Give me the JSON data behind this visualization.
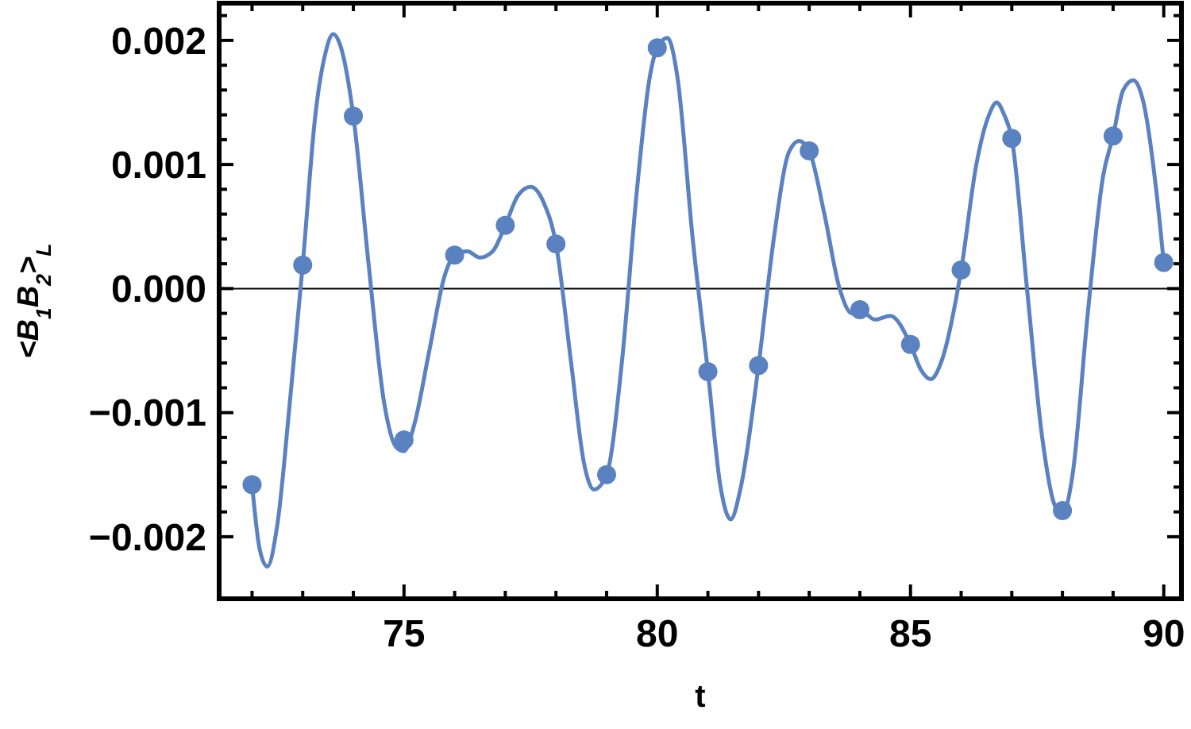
{
  "chart_data": {
    "type": "line",
    "xlabel": "t",
    "ylabel": "<B$_{1}$B$_{2}$>$_{L}$",
    "xlim": [
      71.35,
      90.35
    ],
    "ylim": [
      -0.0025,
      0.0023
    ],
    "xticks": [
      {
        "value": 72,
        "label": null
      },
      {
        "value": 73,
        "label": null
      },
      {
        "value": 74,
        "label": null
      },
      75,
      {
        "value": 76,
        "label": null
      },
      {
        "value": 77,
        "label": null
      },
      {
        "value": 78,
        "label": null
      },
      {
        "value": 79,
        "label": null
      },
      80,
      {
        "value": 81,
        "label": null
      },
      {
        "value": 82,
        "label": null
      },
      {
        "value": 83,
        "label": null
      },
      {
        "value": 84,
        "label": null
      },
      85,
      {
        "value": 86,
        "label": null
      },
      {
        "value": 87,
        "label": null
      },
      {
        "value": 88,
        "label": null
      },
      {
        "value": 89,
        "label": null
      },
      90
    ],
    "yticks": [
      {
        "value": -0.002,
        "label": "−0.002"
      },
      {
        "value": -0.0018,
        "label": null
      },
      {
        "value": -0.0016,
        "label": null
      },
      {
        "value": -0.0014,
        "label": null
      },
      {
        "value": -0.0012,
        "label": null
      },
      {
        "value": -0.001,
        "label": "−0.001"
      },
      {
        "value": -0.0008,
        "label": null
      },
      {
        "value": -0.0006,
        "label": null
      },
      {
        "value": -0.0004,
        "label": null
      },
      {
        "value": -0.0002,
        "label": null
      },
      {
        "value": 0,
        "label": "0.000"
      },
      {
        "value": 0.0002,
        "label": null
      },
      {
        "value": 0.0004,
        "label": null
      },
      {
        "value": 0.0006,
        "label": null
      },
      {
        "value": 0.0008,
        "label": null
      },
      {
        "value": 0.001,
        "label": "0.001"
      },
      {
        "value": 0.0012,
        "label": null
      },
      {
        "value": 0.0014,
        "label": null
      },
      {
        "value": 0.0016,
        "label": null
      },
      {
        "value": 0.0018,
        "label": null
      },
      {
        "value": 0.002,
        "label": "0.002"
      },
      {
        "value": 0.0022,
        "label": null
      }
    ],
    "grid": false,
    "ref_lines": [
      {
        "axis": "y",
        "value": 0,
        "color": "#000000"
      }
    ],
    "series": [
      {
        "color": "#5b82c0",
        "marker": "none",
        "line_style": "solid",
        "x": [
          72,
          72.15,
          72.3,
          72.5,
          72.75,
          73,
          73.25,
          73.45,
          73.6,
          73.75,
          74,
          74.3,
          74.6,
          74.85,
          75,
          75.2,
          75.5,
          75.8,
          76,
          76.25,
          76.5,
          76.75,
          77,
          77.25,
          77.5,
          77.75,
          78,
          78.3,
          78.55,
          78.75,
          79,
          79.3,
          79.6,
          79.85,
          80,
          80.2,
          80.4,
          80.7,
          81,
          81.25,
          81.45,
          81.65,
          82,
          82.3,
          82.6,
          82.8,
          83,
          83.3,
          83.6,
          83.85,
          84,
          84.3,
          84.6,
          85,
          85.2,
          85.4,
          85.6,
          86,
          86.3,
          86.55,
          86.7,
          86.85,
          87,
          87.3,
          87.6,
          87.85,
          88,
          88.2,
          88.5,
          88.8,
          89,
          89.2,
          89.4,
          89.6,
          89.85,
          90
        ],
        "values": [
          -0.00158,
          -0.0021,
          -0.00224,
          -0.0019,
          -0.0009,
          0.00019,
          0.0014,
          0.0019,
          0.00205,
          0.00195,
          0.00139,
          0.0002,
          -0.0009,
          -0.00128,
          -0.00131,
          -0.0011,
          -0.0005,
          0.0001,
          0.00027,
          0.0003,
          0.00025,
          0.0003,
          0.00051,
          0.00075,
          0.00082,
          0.0007,
          0.00036,
          -0.0006,
          -0.0014,
          -0.00162,
          -0.0015,
          -0.0006,
          0.0008,
          0.0017,
          0.00194,
          0.00202,
          0.0017,
          0.0004,
          -0.00067,
          -0.0016,
          -0.00186,
          -0.0016,
          -0.00062,
          0.0004,
          0.0011,
          0.00119,
          0.00111,
          0.0006,
          0,
          -0.0002,
          -0.00017,
          -0.00025,
          -0.00022,
          -0.00045,
          -0.00065,
          -0.00073,
          -0.0006,
          0.00015,
          0.001,
          0.0014,
          0.0015,
          0.0014,
          0.00121,
          0,
          -0.0012,
          -0.00175,
          -0.00182,
          -0.0015,
          -0.0002,
          0.0009,
          0.00123,
          0.0016,
          0.00168,
          0.0015,
          0.0008,
          0.00021
        ]
      },
      {
        "type": "scatter",
        "color": "#5b82c0",
        "marker": "circle",
        "x": [
          72,
          73,
          74,
          75,
          76,
          77,
          78,
          79,
          80,
          81,
          82,
          83,
          84,
          85,
          86,
          87,
          88,
          89,
          90
        ],
        "values": [
          -0.00158,
          0.00019,
          0.00139,
          -0.00122,
          0.00027,
          0.00051,
          0.00036,
          -0.0015,
          0.00194,
          -0.00067,
          -0.00062,
          0.00111,
          -0.00017,
          -0.00045,
          0.00015,
          0.00121,
          -0.00179,
          0.00123,
          0.00021
        ]
      }
    ]
  }
}
